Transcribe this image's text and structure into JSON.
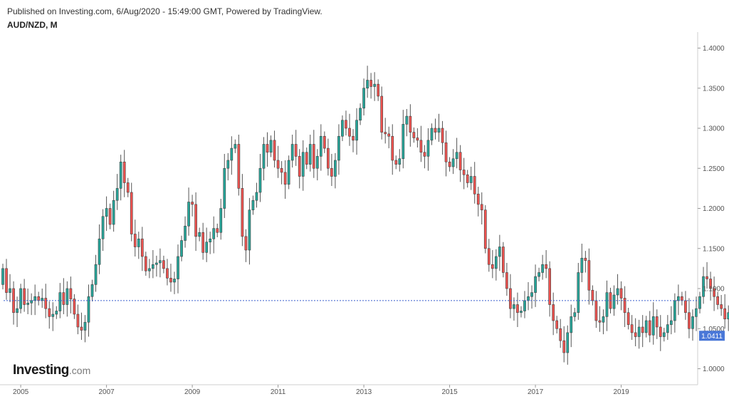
{
  "header": {
    "published": "Published on Investing.com, 6/Aug/2020 - 15:49:00 GMT, Powered by TradingView.",
    "symbol": "AUD/NZD, M"
  },
  "logo": {
    "main": "Investing",
    "suffix": ".com"
  },
  "colors": {
    "up": "#26a69a",
    "down": "#ef5350",
    "priceLine": "#3a5fcd",
    "priceLabelBg": "#4a78d8"
  },
  "chart_data": {
    "type": "candlestick",
    "interval": "M",
    "ylim": [
      0.98,
      1.42
    ],
    "x_range": [
      2004.6,
      2020.75
    ],
    "y_ticks": [
      "1.0000",
      "1.0500",
      "1.1000",
      "1.1500",
      "1.2000",
      "1.2500",
      "1.3000",
      "1.3500",
      "1.4000"
    ],
    "x_ticks": [
      "2005",
      "2007",
      "2009",
      "2011",
      "2013",
      "2015",
      "2017",
      "2019"
    ],
    "last_price": "1.0411",
    "last_price_value": 1.0411,
    "reference_line": 1.085,
    "closes": [
      1.125,
      1.095,
      1.1,
      1.07,
      1.075,
      1.1,
      1.08,
      1.082,
      1.085,
      1.09,
      1.085,
      1.088,
      1.075,
      1.065,
      1.068,
      1.072,
      1.095,
      1.08,
      1.1,
      1.087,
      1.068,
      1.052,
      1.048,
      1.058,
      1.09,
      1.105,
      1.13,
      1.162,
      1.19,
      1.2,
      1.18,
      1.21,
      1.225,
      1.258,
      1.232,
      1.22,
      1.168,
      1.152,
      1.162,
      1.14,
      1.122,
      1.125,
      1.13,
      1.132,
      1.135,
      1.125,
      1.113,
      1.108,
      1.112,
      1.14,
      1.16,
      1.178,
      1.208,
      1.205,
      1.165,
      1.17,
      1.145,
      1.158,
      1.162,
      1.175,
      1.17,
      1.2,
      1.25,
      1.26,
      1.275,
      1.28,
      1.225,
      1.165,
      1.148,
      1.198,
      1.21,
      1.22,
      1.25,
      1.28,
      1.27,
      1.285,
      1.26,
      1.25,
      1.245,
      1.23,
      1.26,
      1.28,
      1.265,
      1.24,
      1.27,
      1.255,
      1.28,
      1.25,
      1.265,
      1.29,
      1.275,
      1.25,
      1.24,
      1.26,
      1.29,
      1.31,
      1.3,
      1.29,
      1.285,
      1.31,
      1.325,
      1.35,
      1.36,
      1.352,
      1.355,
      1.34,
      1.295,
      1.293,
      1.29,
      1.26,
      1.255,
      1.262,
      1.305,
      1.315,
      1.295,
      1.288,
      1.285,
      1.27,
      1.265,
      1.285,
      1.3,
      1.295,
      1.3,
      1.282,
      1.258,
      1.252,
      1.262,
      1.27,
      1.248,
      1.242,
      1.232,
      1.24,
      1.218,
      1.205,
      1.198,
      1.15,
      1.13,
      1.125,
      1.14,
      1.152,
      1.12,
      1.1,
      1.075,
      1.08,
      1.07,
      1.072,
      1.085,
      1.09,
      1.095,
      1.115,
      1.12,
      1.13,
      1.125,
      1.08,
      1.06,
      1.05,
      1.035,
      1.02,
      1.045,
      1.065,
      1.07,
      1.12,
      1.138,
      1.135,
      1.098,
      1.085,
      1.06,
      1.058,
      1.065,
      1.095,
      1.075,
      1.092,
      1.1,
      1.088,
      1.07,
      1.055,
      1.045,
      1.04,
      1.052,
      1.045,
      1.06,
      1.042,
      1.065,
      1.052,
      1.04,
      1.045,
      1.055,
      1.06,
      1.085,
      1.09,
      1.085,
      1.07,
      1.05,
      1.065,
      1.075,
      1.09,
      1.115,
      1.112,
      1.1,
      1.09,
      1.08,
      1.075,
      1.062,
      1.07,
      1.085,
      1.078,
      1.095,
      1.088,
      1.09,
      1.072,
      1.06,
      1.065,
      1.05,
      1.042,
      1.048,
      1.05,
      1.045,
      1.058,
      1.065,
      1.05,
      1.045,
      1.07,
      1.08,
      1.075,
      1.055,
      1.045,
      1.042,
      1.041
    ]
  }
}
